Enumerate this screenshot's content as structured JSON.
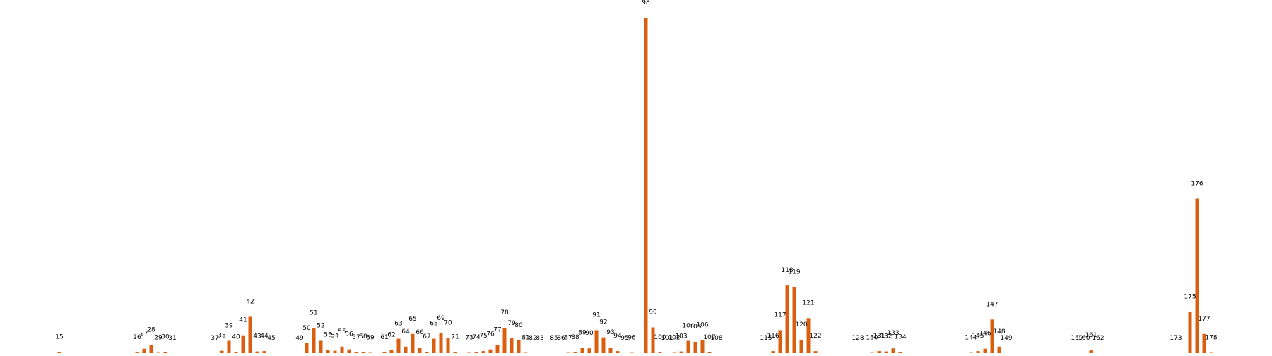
{
  "chart_data": {
    "type": "bar",
    "title": "",
    "xlabel": "",
    "ylabel": "",
    "grid": false,
    "legend": "none",
    "bar_color": "#d95f0e",
    "label_color": "#000000",
    "x_range": [
      15,
      178
    ],
    "ylim": [
      0,
      98
    ],
    "bars": [
      {
        "x": 15,
        "value": 0.5
      },
      {
        "x": 26,
        "value": 0.4
      },
      {
        "x": 27,
        "value": 1.5
      },
      {
        "x": 28,
        "value": 2.6
      },
      {
        "x": 29,
        "value": 0.3
      },
      {
        "x": 30,
        "value": 0.5
      },
      {
        "x": 31,
        "value": 0.1
      },
      {
        "x": 37,
        "value": 0.2
      },
      {
        "x": 38,
        "value": 0.9
      },
      {
        "x": 39,
        "value": 3.8
      },
      {
        "x": 40,
        "value": 0.5
      },
      {
        "x": 41,
        "value": 5.4
      },
      {
        "x": 42,
        "value": 10.8
      },
      {
        "x": 43,
        "value": 0.7
      },
      {
        "x": 44,
        "value": 0.8
      },
      {
        "x": 45,
        "value": 0.1
      },
      {
        "x": 49,
        "value": 0.2
      },
      {
        "x": 50,
        "value": 3.1
      },
      {
        "x": 51,
        "value": 7.5
      },
      {
        "x": 52,
        "value": 3.8
      },
      {
        "x": 53,
        "value": 1.1
      },
      {
        "x": 54,
        "value": 0.9
      },
      {
        "x": 55,
        "value": 2.1
      },
      {
        "x": 56,
        "value": 1.3
      },
      {
        "x": 57,
        "value": 0.4
      },
      {
        "x": 58,
        "value": 0.6
      },
      {
        "x": 59,
        "value": 0.3
      },
      {
        "x": 61,
        "value": 0.4
      },
      {
        "x": 62,
        "value": 1.1
      },
      {
        "x": 63,
        "value": 4.4
      },
      {
        "x": 64,
        "value": 2.1
      },
      {
        "x": 65,
        "value": 5.8
      },
      {
        "x": 66,
        "value": 1.8
      },
      {
        "x": 67,
        "value": 0.6
      },
      {
        "x": 68,
        "value": 4.4
      },
      {
        "x": 69,
        "value": 6.0
      },
      {
        "x": 70,
        "value": 4.6
      },
      {
        "x": 71,
        "value": 0.5
      },
      {
        "x": 73,
        "value": 0.3
      },
      {
        "x": 74,
        "value": 0.4
      },
      {
        "x": 75,
        "value": 0.8
      },
      {
        "x": 76,
        "value": 1.3
      },
      {
        "x": 77,
        "value": 2.6
      },
      {
        "x": 78,
        "value": 7.6
      },
      {
        "x": 79,
        "value": 4.5
      },
      {
        "x": 80,
        "value": 3.9
      },
      {
        "x": 81,
        "value": 0.3
      },
      {
        "x": 82,
        "value": 0.1
      },
      {
        "x": 83,
        "value": 0.1
      },
      {
        "x": 85,
        "value": 0.1
      },
      {
        "x": 86,
        "value": 0.1
      },
      {
        "x": 87,
        "value": 0.3
      },
      {
        "x": 88,
        "value": 0.4
      },
      {
        "x": 89,
        "value": 1.7
      },
      {
        "x": 90,
        "value": 1.6
      },
      {
        "x": 91,
        "value": 6.9
      },
      {
        "x": 92,
        "value": 4.8
      },
      {
        "x": 93,
        "value": 1.8
      },
      {
        "x": 94,
        "value": 0.8
      },
      {
        "x": 95,
        "value": 0.1
      },
      {
        "x": 96,
        "value": 0.3
      },
      {
        "x": 98,
        "value": 97.8
      },
      {
        "x": 99,
        "value": 7.7
      },
      {
        "x": 100,
        "value": 0.4
      },
      {
        "x": 101,
        "value": 0.1
      },
      {
        "x": 102,
        "value": 0.3
      },
      {
        "x": 103,
        "value": 0.7
      },
      {
        "x": 104,
        "value": 3.8
      },
      {
        "x": 105,
        "value": 3.5
      },
      {
        "x": 106,
        "value": 4.0
      },
      {
        "x": 107,
        "value": 0.4
      },
      {
        "x": 108,
        "value": 0.1
      },
      {
        "x": 115,
        "value": 0.1
      },
      {
        "x": 116,
        "value": 0.8
      },
      {
        "x": 117,
        "value": 6.9
      },
      {
        "x": 118,
        "value": 19.9
      },
      {
        "x": 119,
        "value": 19.4
      },
      {
        "x": 120,
        "value": 4.1
      },
      {
        "x": 121,
        "value": 10.4
      },
      {
        "x": 122,
        "value": 0.8
      },
      {
        "x": 128,
        "value": 0.1
      },
      {
        "x": 130,
        "value": 0.3
      },
      {
        "x": 131,
        "value": 0.8
      },
      {
        "x": 132,
        "value": 0.7
      },
      {
        "x": 133,
        "value": 1.6
      },
      {
        "x": 134,
        "value": 0.5
      },
      {
        "x": 144,
        "value": 0.3
      },
      {
        "x": 145,
        "value": 0.8
      },
      {
        "x": 146,
        "value": 1.5
      },
      {
        "x": 147,
        "value": 10.0
      },
      {
        "x": 148,
        "value": 2.1
      },
      {
        "x": 149,
        "value": 0.2
      },
      {
        "x": 159,
        "value": 0.1
      },
      {
        "x": 160,
        "value": 0.1
      },
      {
        "x": 161,
        "value": 1.0
      },
      {
        "x": 162,
        "value": 0.1
      },
      {
        "x": 173,
        "value": 0.1
      },
      {
        "x": 175,
        "value": 12.2
      },
      {
        "x": 176,
        "value": 45.1
      },
      {
        "x": 177,
        "value": 5.8
      },
      {
        "x": 178,
        "value": 0.3
      }
    ]
  }
}
